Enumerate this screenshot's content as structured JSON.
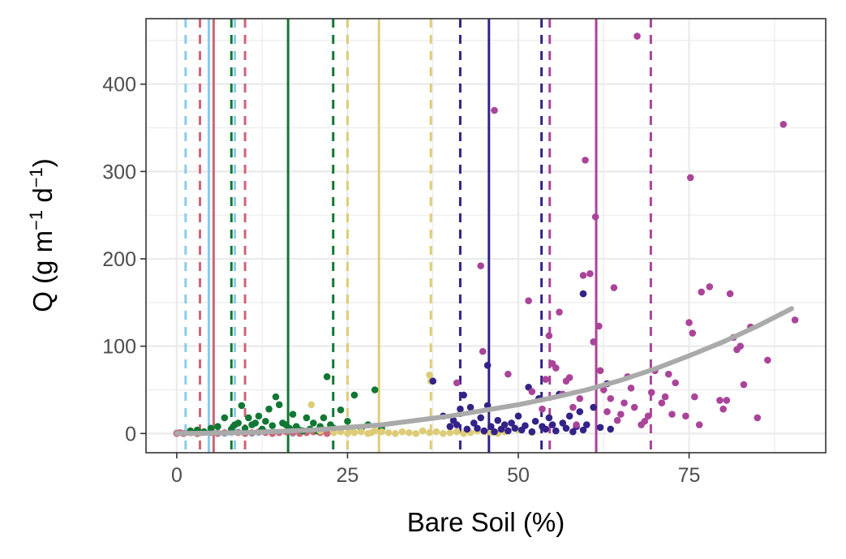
{
  "chart_data": {
    "type": "scatter",
    "title": "",
    "xlabel": "Bare Soil (%)",
    "ylabel_main": "Q (g m",
    "ylabel_sup1": "−1",
    "ylabel_mid": " d",
    "ylabel_sup2": "−1",
    "ylabel_end": ")",
    "xlim": [
      -4.5,
      95.0
    ],
    "ylim": [
      -22,
      475
    ],
    "x_ticks": [
      0,
      25,
      50,
      75
    ],
    "x_tick_labels": [
      "0",
      "25",
      "50",
      "75"
    ],
    "y_ticks": [
      0,
      100,
      200,
      300,
      400
    ],
    "y_tick_labels": [
      "0",
      "100",
      "200",
      "300",
      "400"
    ],
    "grid": true,
    "legend": "none",
    "colors": {
      "series_1": "#88ccee",
      "series_2": "#cc6677",
      "series_3": "#117733",
      "series_4": "#ddcc77",
      "series_5": "#332288",
      "series_6": "#aa4499",
      "trend": "#aaaaaa"
    },
    "vertical_lines": [
      {
        "x": 1.3,
        "style": "dashed",
        "color": "#88ccee"
      },
      {
        "x": 4.7,
        "style": "solid",
        "color": "#88ccee"
      },
      {
        "x": 8.5,
        "style": "dashed",
        "color": "#88ccee"
      },
      {
        "x": 3.4,
        "style": "dashed",
        "color": "#cc6677"
      },
      {
        "x": 5.4,
        "style": "solid",
        "color": "#cc6677"
      },
      {
        "x": 10.0,
        "style": "dashed",
        "color": "#cc6677"
      },
      {
        "x": 8.0,
        "style": "dashed",
        "color": "#117733"
      },
      {
        "x": 16.3,
        "style": "solid",
        "color": "#117733"
      },
      {
        "x": 22.9,
        "style": "dashed",
        "color": "#117733"
      },
      {
        "x": 25.0,
        "style": "dashed",
        "color": "#ddcc77"
      },
      {
        "x": 29.6,
        "style": "solid",
        "color": "#ddcc77"
      },
      {
        "x": 37.2,
        "style": "dashed",
        "color": "#ddcc77"
      },
      {
        "x": 41.5,
        "style": "dashed",
        "color": "#332288"
      },
      {
        "x": 45.7,
        "style": "solid",
        "color": "#332288"
      },
      {
        "x": 53.4,
        "style": "dashed",
        "color": "#332288"
      },
      {
        "x": 54.6,
        "style": "dashed",
        "color": "#aa4499"
      },
      {
        "x": 61.4,
        "style": "solid",
        "color": "#aa4499"
      },
      {
        "x": 69.4,
        "style": "dashed",
        "color": "#aa4499"
      }
    ],
    "trend_line": {
      "x": [
        0,
        10,
        20,
        30,
        40,
        50,
        55,
        60,
        65,
        70,
        75,
        80,
        85,
        90
      ],
      "y": [
        0,
        1,
        4,
        10,
        20,
        33,
        41,
        50,
        61,
        74,
        89,
        105,
        123,
        143
      ]
    },
    "series": [
      {
        "color_key": "series_1",
        "points": [
          [
            0,
            1
          ],
          [
            1,
            0
          ],
          [
            2,
            1
          ],
          [
            3,
            0
          ],
          [
            4,
            1
          ],
          [
            5,
            2
          ],
          [
            6,
            1
          ],
          [
            7,
            0
          ],
          [
            8,
            1
          ],
          [
            9,
            2
          ],
          [
            10,
            1
          ],
          [
            11,
            0
          ],
          [
            12,
            1
          ],
          [
            13,
            2
          ],
          [
            15,
            1
          ],
          [
            17,
            0
          ],
          [
            19,
            1
          ],
          [
            20,
            2
          ]
        ]
      },
      {
        "color_key": "series_2",
        "points": [
          [
            0,
            0
          ],
          [
            0.5,
            1
          ],
          [
            1,
            0
          ],
          [
            2,
            1
          ],
          [
            3,
            0
          ],
          [
            3.5,
            1
          ],
          [
            4,
            2
          ],
          [
            5,
            1
          ],
          [
            6,
            0
          ],
          [
            7,
            1
          ],
          [
            8,
            2
          ],
          [
            9,
            1
          ],
          [
            10,
            0
          ],
          [
            11,
            1
          ],
          [
            12,
            2
          ],
          [
            13,
            1
          ],
          [
            14,
            0
          ],
          [
            15,
            1
          ],
          [
            16,
            2
          ],
          [
            17,
            1
          ],
          [
            18,
            0
          ],
          [
            19,
            1
          ],
          [
            20,
            2
          ],
          [
            21,
            1
          ],
          [
            22,
            0
          ]
        ]
      },
      {
        "color_key": "series_3",
        "points": [
          [
            2,
            3
          ],
          [
            3,
            4
          ],
          [
            4,
            2
          ],
          [
            5,
            6
          ],
          [
            6,
            8
          ],
          [
            7,
            18
          ],
          [
            8,
            5
          ],
          [
            8.5,
            10
          ],
          [
            9,
            12
          ],
          [
            9.5,
            32
          ],
          [
            10,
            6
          ],
          [
            10.5,
            18
          ],
          [
            11,
            10
          ],
          [
            11.5,
            12
          ],
          [
            12,
            20
          ],
          [
            12.5,
            5
          ],
          [
            13,
            14
          ],
          [
            13.5,
            28
          ],
          [
            14,
            9
          ],
          [
            14.5,
            42
          ],
          [
            15,
            33
          ],
          [
            15.5,
            12
          ],
          [
            16,
            10
          ],
          [
            16.5,
            6
          ],
          [
            17,
            22
          ],
          [
            17.5,
            8
          ],
          [
            18,
            4
          ],
          [
            18.5,
            3
          ],
          [
            19,
            18
          ],
          [
            19.5,
            5
          ],
          [
            20,
            12
          ],
          [
            20.5,
            3
          ],
          [
            21,
            8
          ],
          [
            21.5,
            18
          ],
          [
            22,
            65
          ],
          [
            22.5,
            10
          ],
          [
            23,
            6
          ],
          [
            24,
            27
          ],
          [
            25,
            14
          ],
          [
            26,
            44
          ],
          [
            27,
            5
          ],
          [
            28,
            10
          ],
          [
            29,
            50
          ],
          [
            30,
            6
          ]
        ]
      },
      {
        "color_key": "series_4",
        "points": [
          [
            19.7,
            33
          ],
          [
            21,
            3
          ],
          [
            23,
            1
          ],
          [
            24,
            2
          ],
          [
            25,
            0
          ],
          [
            25.5,
            4
          ],
          [
            26,
            1
          ],
          [
            27,
            2
          ],
          [
            28,
            0
          ],
          [
            28.5,
            1
          ],
          [
            29,
            3
          ],
          [
            30,
            2
          ],
          [
            31,
            1
          ],
          [
            32,
            0
          ],
          [
            33,
            2
          ],
          [
            34,
            1
          ],
          [
            35,
            0
          ],
          [
            36,
            3
          ],
          [
            37,
            1
          ],
          [
            37.2,
            60
          ],
          [
            37,
            67
          ],
          [
            38,
            2
          ],
          [
            39,
            0
          ],
          [
            40,
            1
          ],
          [
            41,
            2
          ],
          [
            42,
            0
          ],
          [
            43,
            1
          ],
          [
            44,
            3
          ],
          [
            45,
            2
          ],
          [
            46,
            1
          ],
          [
            47,
            0
          ],
          [
            48,
            2
          ],
          [
            50,
            4
          ],
          [
            52,
            1
          ]
        ]
      },
      {
        "color_key": "series_5",
        "points": [
          [
            37.5,
            60
          ],
          [
            39,
            20
          ],
          [
            40,
            8
          ],
          [
            40.5,
            15
          ],
          [
            41,
            10
          ],
          [
            41.5,
            28
          ],
          [
            42,
            44
          ],
          [
            42.5,
            5
          ],
          [
            43,
            30
          ],
          [
            43.5,
            12
          ],
          [
            44,
            6
          ],
          [
            44.5,
            18
          ],
          [
            45,
            3
          ],
          [
            45.5,
            32
          ],
          [
            45.5,
            78
          ],
          [
            46,
            8
          ],
          [
            46.5,
            2
          ],
          [
            47,
            15
          ],
          [
            47.5,
            5
          ],
          [
            48,
            10
          ],
          [
            48.5,
            3
          ],
          [
            49,
            12
          ],
          [
            49.5,
            6
          ],
          [
            50,
            20
          ],
          [
            50.5,
            4
          ],
          [
            51,
            9
          ],
          [
            51.5,
            53
          ],
          [
            52,
            2
          ],
          [
            52.5,
            14
          ],
          [
            53,
            40
          ],
          [
            53.5,
            8
          ],
          [
            54,
            5
          ],
          [
            54.5,
            18
          ],
          [
            55,
            10
          ],
          [
            55.5,
            3
          ],
          [
            56,
            45
          ],
          [
            56.5,
            12
          ],
          [
            57,
            6
          ],
          [
            57.5,
            20
          ],
          [
            58,
            2
          ],
          [
            58.5,
            8
          ],
          [
            59,
            25
          ],
          [
            59.5,
            4
          ],
          [
            59.5,
            160
          ],
          [
            60,
            10
          ],
          [
            61,
            30
          ],
          [
            62,
            7
          ],
          [
            63,
            57
          ],
          [
            63.5,
            5
          ]
        ]
      },
      {
        "color_key": "series_6",
        "points": [
          [
            41,
            58
          ],
          [
            44.5,
            192
          ],
          [
            44.8,
            94
          ],
          [
            46.5,
            370
          ],
          [
            48.5,
            68
          ],
          [
            51.5,
            152
          ],
          [
            52,
            48
          ],
          [
            53.5,
            28
          ],
          [
            54,
            62
          ],
          [
            54.5,
            112
          ],
          [
            55,
            80
          ],
          [
            55.5,
            75
          ],
          [
            56,
            139
          ],
          [
            56.5,
            45
          ],
          [
            57,
            60
          ],
          [
            57.5,
            64
          ],
          [
            58,
            30
          ],
          [
            58.5,
            10
          ],
          [
            59,
            40
          ],
          [
            59.5,
            181
          ],
          [
            59.8,
            313
          ],
          [
            60.5,
            183
          ],
          [
            61,
            105
          ],
          [
            61.3,
            248
          ],
          [
            61.8,
            123
          ],
          [
            62,
            72
          ],
          [
            62.5,
            50
          ],
          [
            63,
            25
          ],
          [
            63.5,
            40
          ],
          [
            64,
            167
          ],
          [
            64.5,
            15
          ],
          [
            65,
            22
          ],
          [
            65.5,
            35
          ],
          [
            66,
            65
          ],
          [
            66.5,
            52
          ],
          [
            67,
            30
          ],
          [
            67.4,
            455
          ],
          [
            68,
            10
          ],
          [
            68.5,
            14
          ],
          [
            69,
            20
          ],
          [
            69.5,
            47
          ],
          [
            70,
            72
          ],
          [
            71,
            35
          ],
          [
            71.5,
            42
          ],
          [
            72,
            68
          ],
          [
            72.5,
            22
          ],
          [
            73,
            58
          ],
          [
            74.5,
            20
          ],
          [
            75,
            127
          ],
          [
            75.2,
            293
          ],
          [
            75.5,
            115
          ],
          [
            75.8,
            42
          ],
          [
            76.5,
            10
          ],
          [
            76.8,
            162
          ],
          [
            78,
            168
          ],
          [
            79.5,
            38
          ],
          [
            80,
            28
          ],
          [
            80.5,
            38
          ],
          [
            81,
            160
          ],
          [
            81.5,
            110
          ],
          [
            82,
            96
          ],
          [
            82.5,
            100
          ],
          [
            83,
            56
          ],
          [
            84,
            122
          ],
          [
            85,
            18
          ],
          [
            86.5,
            84
          ],
          [
            88.8,
            354
          ],
          [
            90.5,
            130
          ]
        ]
      }
    ]
  }
}
